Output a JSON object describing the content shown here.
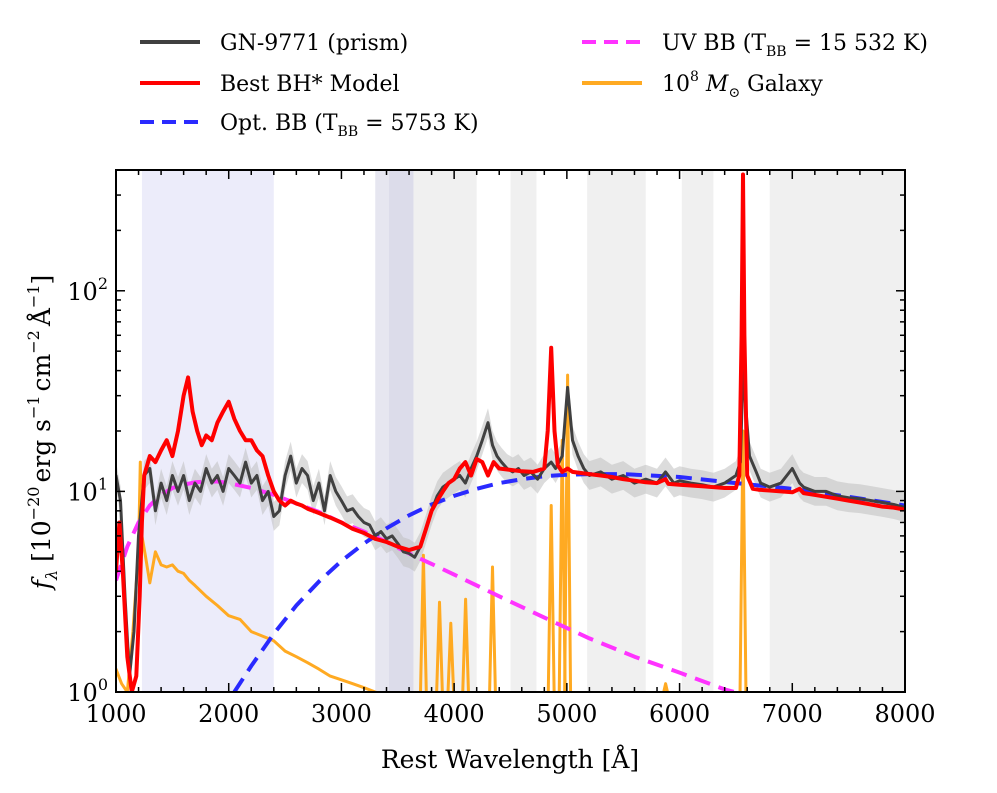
{
  "chart_data": {
    "type": "line",
    "xlabel": "Rest Wavelength [Å]",
    "ylabel": "f_λ [10^-20 erg s^-1 cm^-2 Å^-1]",
    "xscale": "linear",
    "yscale": "log",
    "xlim": [
      1000,
      8000
    ],
    "ylim": [
      1,
      400
    ],
    "x_ticks": [
      1000,
      2000,
      3000,
      4000,
      5000,
      6000,
      7000,
      8000
    ],
    "x_tick_labels": [
      "1000",
      "2000",
      "3000",
      "4000",
      "5000",
      "6000",
      "7000",
      "8000"
    ],
    "y_tick_labels": [
      {
        "value": 1,
        "base": "10",
        "exp": "0"
      },
      {
        "value": 10,
        "base": "10",
        "exp": "1"
      },
      {
        "value": 100,
        "base": "10",
        "exp": "2"
      }
    ],
    "ylabel_parts": {
      "f": "f",
      "lambda": "λ",
      "open": "[10",
      "exp20": "−20",
      "erg": "erg s",
      "m1a": "−1",
      "cm": "cm",
      "m2": "−2",
      "ang": "Å",
      "m1b": "−1",
      "close": "]"
    },
    "legend_position": "above plot",
    "legend": [
      {
        "key": "data",
        "text": "GN-9771 (prism)",
        "color": "#404040",
        "style": "solid"
      },
      {
        "key": "uvbb",
        "text": "UV BB (T",
        "sub": "BB",
        "tail": " = 15 532 K)",
        "color": "#ff33ff",
        "style": "dashed"
      },
      {
        "key": "bh",
        "text": "Best BH* Model",
        "color": "#ff0000",
        "style": "solid"
      },
      {
        "key": "galaxy",
        "pre": "10",
        "sup": "8",
        "mid": " M",
        "msub": "⊙",
        "tail": " Galaxy",
        "color": "#ffaa22",
        "style": "solid"
      },
      {
        "key": "optbb",
        "text": "Opt. BB (T",
        "sub": "BB",
        "tail": " = 5753 K)",
        "color": "#2a2aff",
        "style": "dashed"
      }
    ],
    "shaded_regions": [
      {
        "x0": 1230,
        "x1": 2400,
        "color": "#ececfa"
      },
      {
        "x0": 3300,
        "x1": 3420,
        "color": "#e6e6f0"
      },
      {
        "x0": 3420,
        "x1": 3640,
        "color": "#dcdcea"
      },
      {
        "x0": 3640,
        "x1": 4200,
        "color": "#f0f0f0"
      },
      {
        "x0": 4500,
        "x1": 4730,
        "color": "#f0f0f0"
      },
      {
        "x0": 5180,
        "x1": 5700,
        "color": "#f0f0f0"
      },
      {
        "x0": 6020,
        "x1": 6300,
        "color": "#f0f0f0"
      },
      {
        "x0": 6800,
        "x1": 8000,
        "color": "#f0f0f0"
      }
    ],
    "series": [
      {
        "name": "GN-9771 (prism)",
        "color": "#404040",
        "width": 3,
        "x": [
          1000,
          1040,
          1080,
          1120,
          1160,
          1200,
          1250,
          1300,
          1350,
          1400,
          1450,
          1500,
          1550,
          1600,
          1650,
          1700,
          1750,
          1800,
          1850,
          1900,
          1950,
          2000,
          2050,
          2100,
          2150,
          2200,
          2250,
          2300,
          2350,
          2400,
          2450,
          2500,
          2550,
          2600,
          2650,
          2700,
          2750,
          2800,
          2850,
          2900,
          2950,
          3000,
          3050,
          3100,
          3150,
          3200,
          3250,
          3300,
          3350,
          3400,
          3450,
          3500,
          3550,
          3600,
          3650,
          3700,
          3750,
          3800,
          3850,
          3900,
          3950,
          4000,
          4050,
          4100,
          4150,
          4200,
          4250,
          4300,
          4340,
          4380,
          4420,
          4470,
          4520,
          4570,
          4620,
          4680,
          4740,
          4800,
          4861,
          4900,
          4959,
          5007,
          5050,
          5100,
          5150,
          5200,
          5300,
          5400,
          5500,
          5600,
          5700,
          5800,
          5875,
          5950,
          6000,
          6100,
          6200,
          6300,
          6400,
          6500,
          6540,
          6563,
          6590,
          6620,
          6680,
          6720,
          6800,
          6900,
          7000,
          7065,
          7100,
          7200,
          7300,
          7400,
          7500,
          7600,
          7700,
          7800,
          7900,
          8000
        ],
        "y": [
          12,
          9,
          3,
          1.2,
          2,
          6,
          12,
          13,
          8,
          11,
          9,
          12,
          10,
          12,
          9,
          11,
          10,
          13,
          11,
          12,
          10,
          13,
          12,
          11,
          14,
          11,
          12,
          9,
          10,
          7.5,
          8,
          12,
          15,
          11,
          13,
          12,
          9,
          11,
          8,
          12,
          10,
          9,
          8,
          8.2,
          7.5,
          7,
          6.8,
          6,
          6.3,
          5.8,
          6,
          5.5,
          5,
          4.9,
          4.7,
          5.3,
          6.5,
          8,
          9.5,
          10.5,
          11,
          11.5,
          12,
          11,
          13,
          15,
          18,
          22,
          17,
          15,
          14,
          13,
          12.5,
          13,
          12,
          12.5,
          11.5,
          13,
          14,
          13,
          15,
          33,
          18,
          15,
          13,
          12,
          12.5,
          11.5,
          12,
          11,
          11.5,
          11,
          12.5,
          11,
          11.3,
          11,
          10.8,
          10.5,
          11,
          12,
          14,
          40,
          25,
          15,
          12.5,
          11,
          10.5,
          11,
          13,
          11,
          10.5,
          10,
          10,
          9.5,
          9.3,
          9.2,
          9,
          8.8,
          8.6,
          8.3
        ]
      },
      {
        "name": "Best BH* Model",
        "color": "#ff0000",
        "width": 4,
        "x": [
          1000,
          1030,
          1060,
          1100,
          1140,
          1180,
          1210,
          1230,
          1250,
          1300,
          1350,
          1400,
          1450,
          1500,
          1550,
          1600,
          1640,
          1680,
          1720,
          1760,
          1800,
          1850,
          1900,
          1950,
          2000,
          2050,
          2100,
          2150,
          2200,
          2250,
          2300,
          2350,
          2400,
          2450,
          2500,
          2550,
          2600,
          2650,
          2700,
          2800,
          2900,
          3000,
          3100,
          3200,
          3300,
          3400,
          3500,
          3600,
          3700,
          3750,
          3800,
          3850,
          3900,
          3950,
          4000,
          4050,
          4100,
          4150,
          4200,
          4250,
          4300,
          4350,
          4400,
          4500,
          4600,
          4700,
          4800,
          4830,
          4861,
          4890,
          4920,
          4959,
          5007,
          5050,
          5100,
          5200,
          5300,
          5400,
          5500,
          5600,
          5700,
          5800,
          5875,
          5900,
          6000,
          6100,
          6200,
          6300,
          6400,
          6500,
          6530,
          6550,
          6563,
          6575,
          6600,
          6650,
          6700,
          6800,
          6900,
          7000,
          7065,
          7100,
          7200,
          7300,
          7400,
          7500,
          7600,
          7700,
          7800,
          7900,
          8000
        ],
        "y": [
          4,
          7,
          4,
          1.5,
          1,
          1.2,
          3,
          7,
          12,
          15,
          14,
          16,
          18,
          15,
          20,
          30,
          37,
          25,
          20,
          17,
          19,
          18,
          22,
          25,
          28,
          23,
          20,
          18,
          18,
          16,
          15,
          12,
          10,
          9,
          8.5,
          9,
          8.7,
          8.5,
          8.2,
          7.8,
          7.4,
          7,
          6.5,
          6.2,
          5.8,
          5.6,
          5.3,
          5.1,
          5.3,
          6.5,
          8,
          9,
          10,
          11,
          11.5,
          13,
          14,
          12,
          14.5,
          14,
          12,
          14,
          13,
          12.8,
          12.6,
          12.5,
          13,
          20,
          52,
          20,
          13.5,
          12.5,
          13,
          12.5,
          12.4,
          12.2,
          12,
          11.8,
          11.5,
          11.3,
          11.1,
          11,
          11.5,
          10.9,
          10.8,
          10.7,
          10.6,
          10.5,
          10.4,
          10.4,
          12,
          60,
          380,
          60,
          12,
          10.3,
          10.2,
          10.1,
          10,
          9.9,
          10.3,
          9.8,
          9.6,
          9.4,
          9.2,
          9,
          8.8,
          8.6,
          8.4,
          8.3,
          8.1
        ]
      },
      {
        "name": "Opt. BB (T_BB = 5753 K)",
        "color": "#2a2aff",
        "width": 4,
        "dashed": true,
        "x": [
          2050,
          2200,
          2400,
          2600,
          2800,
          3000,
          3200,
          3400,
          3600,
          3800,
          4000,
          4200,
          4400,
          4600,
          4800,
          5000,
          5200,
          5500,
          6000,
          6500,
          7000,
          7500,
          8000
        ],
        "y": [
          1.0,
          1.35,
          1.95,
          2.7,
          3.55,
          4.5,
          5.5,
          6.55,
          7.6,
          8.6,
          9.5,
          10.3,
          11,
          11.5,
          11.9,
          12.1,
          12.2,
          12.2,
          11.8,
          11,
          10.3,
          9.4,
          8.5
        ]
      },
      {
        "name": "UV BB (T_BB = 15 532 K)",
        "color": "#ff33ff",
        "width": 4,
        "dashed": true,
        "x": [
          1000,
          1100,
          1200,
          1300,
          1400,
          1500,
          1600,
          1700,
          1800,
          1900,
          2000,
          2100,
          2200,
          2400,
          2600,
          2800,
          3000,
          3200,
          3400,
          3600,
          3800,
          4000,
          4400,
          4800,
          5200,
          5600,
          6000,
          6400,
          6550
        ],
        "y": [
          3.6,
          5.3,
          7,
          8.5,
          9.6,
          10.4,
          10.8,
          11.1,
          11.2,
          11.2,
          11,
          10.7,
          10.4,
          9.6,
          8.7,
          7.9,
          7.0,
          6.3,
          5.6,
          4.9,
          4.35,
          3.85,
          3.0,
          2.35,
          1.85,
          1.5,
          1.25,
          1.03,
          0.98
        ]
      },
      {
        "name": "10^8 M_sun Galaxy",
        "color": "#ffaa22",
        "width": 3,
        "x": [
          1000,
          1050,
          1100,
          1150,
          1200,
          1216,
          1230,
          1260,
          1300,
          1350,
          1400,
          1450,
          1500,
          1550,
          1600,
          1650,
          1700,
          1800,
          1900,
          2000,
          2100,
          2200,
          2300,
          2400,
          2500,
          2600,
          2700,
          2800,
          2900,
          3000,
          3100,
          3200,
          3300,
          3350
        ],
        "y": [
          1.3,
          1.1,
          1.0,
          2,
          5,
          14,
          6,
          4.8,
          3.5,
          5,
          4.3,
          4.2,
          4.3,
          4.0,
          3.9,
          3.6,
          3.4,
          3.0,
          2.7,
          2.4,
          2.3,
          2.0,
          1.9,
          1.8,
          1.6,
          1.5,
          1.4,
          1.3,
          1.2,
          1.15,
          1.1,
          1.05,
          1.0,
          0.98
        ]
      }
    ],
    "galaxy_emission_lines": [
      {
        "x": 3727,
        "peak": 4.8
      },
      {
        "x": 3870,
        "peak": 2.8
      },
      {
        "x": 3970,
        "peak": 2.2
      },
      {
        "x": 4102,
        "peak": 2.9
      },
      {
        "x": 4340,
        "peak": 4.2
      },
      {
        "x": 4861,
        "peak": 8.5
      },
      {
        "x": 4959,
        "peak": 18
      },
      {
        "x": 5007,
        "peak": 38
      },
      {
        "x": 5876,
        "peak": 1.1
      },
      {
        "x": 6563,
        "peak": 20
      }
    ],
    "colors": {
      "data": "#404040",
      "data_err": "#bfbfbf",
      "bh_model": "#ff0000",
      "opt_bb": "#2a2aff",
      "uv_bb": "#ff33ff",
      "galaxy": "#ffaa22"
    }
  }
}
